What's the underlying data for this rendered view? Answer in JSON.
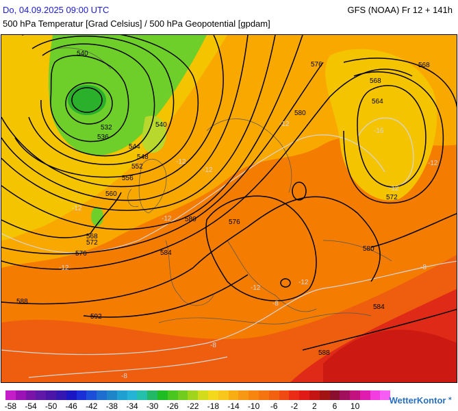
{
  "header": {
    "datetime": "Do, 04.09.2025 09:00 UTC",
    "model_run": "GFS (NOAA) Fr 12 + 141h",
    "subtitle": "500 hPa Temperatur [Grad Celsius] / 500 hPa Geopotential [gpdam]"
  },
  "map": {
    "geopotential_labels": [
      "540",
      "532",
      "536",
      "540",
      "544",
      "548",
      "552",
      "556",
      "560",
      "568",
      "572",
      "576",
      "580",
      "584",
      "588",
      "592",
      "576",
      "580",
      "576",
      "568",
      "564",
      "568",
      "572",
      "580",
      "584",
      "588"
    ],
    "temperature_labels": [
      "-12",
      "-12",
      "-12",
      "-12",
      "-12",
      "-12",
      "-12",
      "-12",
      "-8",
      "-8",
      "-8",
      "-8",
      "-12",
      "-16",
      "-12"
    ],
    "colors": {
      "cold_core": "#2bb02b",
      "green": "#6fcf2a",
      "yellow_green": "#b8d82e",
      "yellow": "#f5c400",
      "orange_light": "#f9a800",
      "orange": "#f47c00",
      "orange_dark": "#ee5e0e",
      "red": "#e02a18",
      "dark_red": "#cc1a12",
      "contour": "#000000",
      "isotherm": "#d7d7d7"
    }
  },
  "legend": {
    "colors": [
      "#c41ec9",
      "#9b13b5",
      "#7a13a8",
      "#6018a8",
      "#4b16a8",
      "#3416b0",
      "#1a16c4",
      "#1b2fd6",
      "#1c4fd8",
      "#1e6ed0",
      "#1d85c8",
      "#1fa0d0",
      "#25b4d6",
      "#25c0ab",
      "#23b866",
      "#1fbc23",
      "#49c61f",
      "#72cc1f",
      "#a1d41d",
      "#d2dc1c",
      "#f3d81c",
      "#f8c61c",
      "#f8ad13",
      "#f79814",
      "#f6860f",
      "#f47510",
      "#f2610f",
      "#ef4a13",
      "#ea2c16",
      "#e01a16",
      "#c41414",
      "#a21414",
      "#8a0f2e",
      "#a1105c",
      "#c1127f",
      "#e01cb0",
      "#f23de0",
      "#f65df2"
    ],
    "labels": [
      "-58",
      "-54",
      "-50",
      "-46",
      "-42",
      "-38",
      "-34",
      "-30",
      "-26",
      "-22",
      "-18",
      "-14",
      "-10",
      "-6",
      "-2",
      "2",
      "6",
      "10"
    ]
  },
  "brand": {
    "name": "WetterKontor",
    "mark": "✶"
  }
}
